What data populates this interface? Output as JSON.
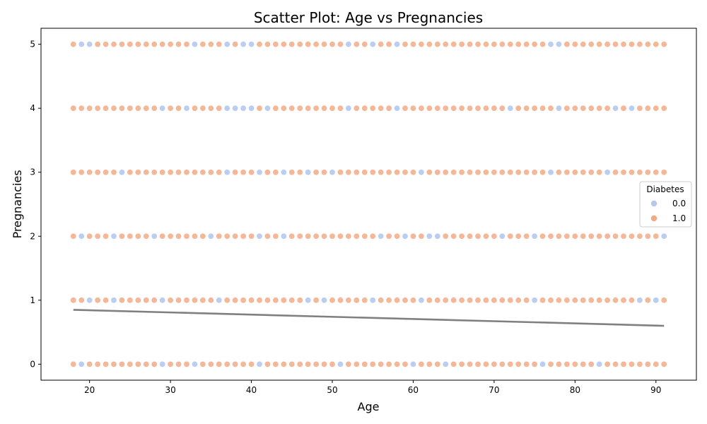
{
  "chart_data": {
    "type": "scatter",
    "title": "Scatter Plot: Age vs Pregnancies",
    "xlabel": "Age",
    "ylabel": "Pregnancies",
    "xlim": [
      14,
      95
    ],
    "ylim": [
      -0.25,
      5.25
    ],
    "x_ticks": [
      20,
      30,
      40,
      50,
      60,
      70,
      80,
      90
    ],
    "y_ticks": [
      0,
      1,
      2,
      3,
      4,
      5
    ],
    "grid": false,
    "legend": {
      "title": "Diabetes",
      "placement": "right",
      "entries": [
        "0.0",
        "1.0"
      ]
    },
    "colors": {
      "class_0": "#b4c8ee",
      "class_1": "#f2aa86",
      "trend": "#808080",
      "axes": "#000000"
    },
    "x_range": [
      18,
      91
    ],
    "series": [
      {
        "name": "0.0",
        "points": [
          [
            19,
            5
          ],
          [
            20,
            5
          ],
          [
            33,
            5
          ],
          [
            37,
            5
          ],
          [
            39,
            5
          ],
          [
            40,
            5
          ],
          [
            52,
            5
          ],
          [
            55,
            5
          ],
          [
            58,
            5
          ],
          [
            77,
            5
          ],
          [
            78,
            5
          ],
          [
            29,
            4
          ],
          [
            32,
            4
          ],
          [
            37,
            4
          ],
          [
            38,
            4
          ],
          [
            39,
            4
          ],
          [
            40,
            4
          ],
          [
            42,
            4
          ],
          [
            52,
            4
          ],
          [
            58,
            4
          ],
          [
            72,
            4
          ],
          [
            78,
            4
          ],
          [
            85,
            4
          ],
          [
            87,
            4
          ],
          [
            24,
            3
          ],
          [
            37,
            3
          ],
          [
            41,
            3
          ],
          [
            44,
            3
          ],
          [
            47,
            3
          ],
          [
            50,
            3
          ],
          [
            61,
            3
          ],
          [
            77,
            3
          ],
          [
            84,
            3
          ],
          [
            19,
            2
          ],
          [
            23,
            2
          ],
          [
            28,
            2
          ],
          [
            35,
            2
          ],
          [
            41,
            2
          ],
          [
            44,
            2
          ],
          [
            56,
            2
          ],
          [
            59,
            2
          ],
          [
            62,
            2
          ],
          [
            63,
            2
          ],
          [
            71,
            2
          ],
          [
            75,
            2
          ],
          [
            91,
            2
          ],
          [
            20,
            1
          ],
          [
            23,
            1
          ],
          [
            29,
            1
          ],
          [
            36,
            1
          ],
          [
            47,
            1
          ],
          [
            49,
            1
          ],
          [
            55,
            1
          ],
          [
            61,
            1
          ],
          [
            75,
            1
          ],
          [
            88,
            1
          ],
          [
            90,
            1
          ],
          [
            19,
            0
          ],
          [
            29,
            0
          ],
          [
            33,
            0
          ],
          [
            41,
            0
          ],
          [
            51,
            0
          ],
          [
            60,
            0
          ],
          [
            64,
            0
          ],
          [
            76,
            0
          ],
          [
            83,
            0
          ]
        ]
      },
      {
        "name": "1.0",
        "points_by_y": {
          "0": "18-91",
          "1": "18-91",
          "2": "18-91",
          "3": "18-91",
          "4": "18-91",
          "5": "18-91"
        }
      }
    ],
    "trend_line": {
      "x": [
        18,
        91
      ],
      "y": [
        0.85,
        0.6
      ]
    }
  }
}
